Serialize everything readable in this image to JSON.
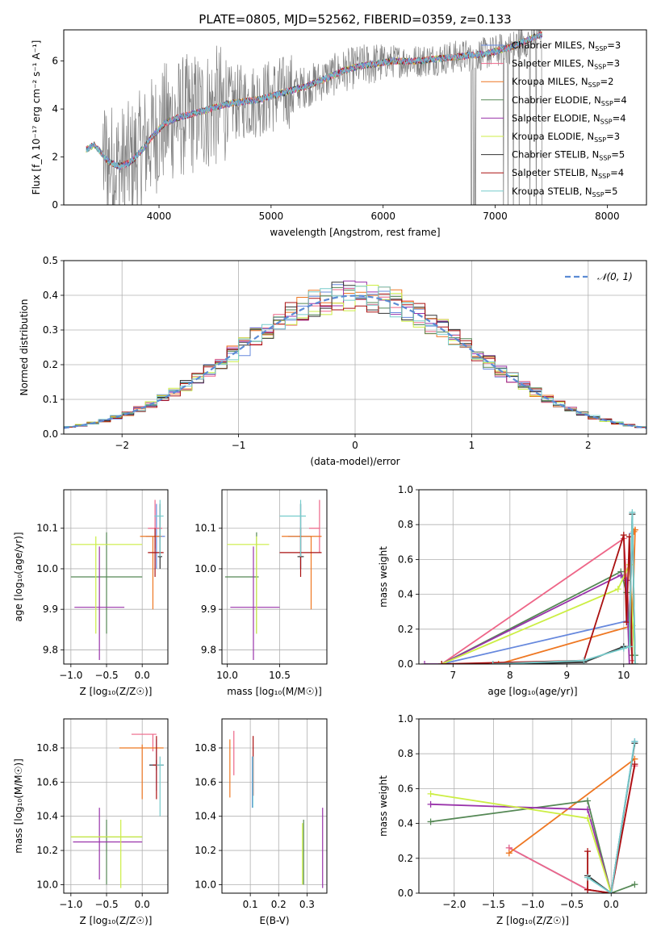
{
  "figure": {
    "title": "PLATE=0805, MJD=52562, FIBERID=0359, z=0.133"
  },
  "colors": {
    "chabrier_miles": "#6688dd",
    "salpeter_miles": "#ee6688",
    "kroupa_miles": "#ee7722",
    "chabrier_elodie": "#558855",
    "salpeter_elodie": "#9933aa",
    "kroupa_elodie": "#ccee44",
    "chabrier_stelib": "#333333",
    "salpeter_stelib": "#aa1111",
    "kroupa_stelib": "#77cccc",
    "data": "#808080",
    "normal": "#5b8bd4"
  },
  "chart_data": [
    {
      "type": "line",
      "id": "spectrum",
      "xlabel": "wavelength [Angstrom, rest frame]",
      "ylabel": "Flux [f_λ 10⁻¹⁷ erg cm⁻² s⁻¹ A⁻¹]",
      "xlim": [
        3150,
        8350
      ],
      "ylim": [
        0,
        7.3
      ],
      "xticks": [
        4000,
        5000,
        6000,
        7000,
        8000
      ],
      "yticks": [
        0,
        2,
        4,
        6
      ],
      "grid": false,
      "legend_position": "top-right",
      "legend": [
        {
          "label": "Chabrier MILES, N",
          "sub": "SSP",
          "suffix": "=3",
          "color": "#6688dd"
        },
        {
          "label": "Salpeter MILES, N",
          "sub": "SSP",
          "suffix": "=3",
          "color": "#ee6688"
        },
        {
          "label": "Kroupa MILES, N",
          "sub": "SSP",
          "suffix": "=2",
          "color": "#ee7722"
        },
        {
          "label": "Chabrier ELODIE, N",
          "sub": "SSP",
          "suffix": "=4",
          "color": "#558855"
        },
        {
          "label": "Salpeter ELODIE, N",
          "sub": "SSP",
          "suffix": "=4",
          "color": "#9933aa"
        },
        {
          "label": "Kroupa ELODIE, N",
          "sub": "SSP",
          "suffix": "=3",
          "color": "#ccee44"
        },
        {
          "label": "Chabrier STELIB, N",
          "sub": "SSP",
          "suffix": "=5",
          "color": "#333333"
        },
        {
          "label": "Salpeter STELIB, N",
          "sub": "SSP",
          "suffix": "=4",
          "color": "#aa1111"
        },
        {
          "label": "Kroupa STELIB, N",
          "sub": "SSP",
          "suffix": "=5",
          "color": "#77cccc"
        }
      ],
      "continuum": {
        "x": [
          3350,
          3420,
          3480,
          3550,
          3650,
          3750,
          3850,
          3950,
          4050,
          4150,
          4300,
          4450,
          4600,
          4750,
          4900,
          5050,
          5200,
          5350,
          5500,
          5650,
          5800,
          5950,
          6100,
          6300,
          6500,
          6700,
          6900,
          7000,
          7150,
          7300,
          7400
        ],
        "y": [
          2.3,
          2.5,
          2.2,
          1.8,
          1.6,
          1.8,
          2.3,
          2.9,
          3.4,
          3.6,
          3.8,
          4.0,
          4.2,
          4.3,
          4.4,
          4.6,
          4.8,
          5.0,
          5.3,
          5.6,
          5.8,
          5.9,
          6.0,
          6.0,
          6.1,
          6.2,
          6.3,
          6.4,
          6.6,
          6.9,
          7.1
        ]
      }
    },
    {
      "type": "bar",
      "id": "residuals",
      "xlabel": "(data-model)/error",
      "ylabel": "Normed distribution",
      "xlim": [
        -2.5,
        2.5
      ],
      "ylim": [
        0,
        0.5
      ],
      "xticks": [
        -2,
        -1,
        0,
        1,
        2
      ],
      "yticks": [
        0.0,
        0.1,
        0.2,
        0.3,
        0.4,
        0.5
      ],
      "grid": true,
      "bin_width": 0.1,
      "legend_position": "top-right",
      "normal_label": "𝒩(0, 1)"
    },
    {
      "type": "scatter",
      "id": "age_vs_Z",
      "xlabel": "Z [log₁₀(Z/Z☉)]",
      "ylabel": "age  [log₁₀(age/yr)]",
      "xlim": [
        -1.1,
        0.36
      ],
      "ylim": [
        9.765,
        10.195
      ],
      "xticks": [
        -1.0,
        -0.5,
        0.0
      ],
      "yticks": [
        9.8,
        9.9,
        10.0,
        10.1
      ],
      "grid": true,
      "points": [
        {
          "color": "#6688dd",
          "x": 0.2,
          "xerr": [
            0.15,
            0.12
          ],
          "y": 10.08,
          "yerr": [
            0.08,
            0.08
          ]
        },
        {
          "color": "#ee6688",
          "x": 0.18,
          "xerr": [
            0.1,
            0.1
          ],
          "y": 10.1,
          "yerr": [
            0.05,
            0.07
          ]
        },
        {
          "color": "#ee7722",
          "x": 0.15,
          "xerr": [
            0.18,
            0.12
          ],
          "y": 10.08,
          "yerr": [
            0.18,
            0.0
          ]
        },
        {
          "color": "#558855",
          "x": -0.5,
          "xerr": [
            0.5,
            0.5
          ],
          "y": 9.98,
          "yerr": [
            0.14,
            0.11
          ]
        },
        {
          "color": "#9933aa",
          "x": -0.6,
          "xerr": [
            0.35,
            0.35
          ],
          "y": 9.905,
          "yerr": [
            0.13,
            0.15
          ]
        },
        {
          "color": "#ccee44",
          "x": -0.65,
          "xerr": [
            0.35,
            0.65
          ],
          "y": 10.06,
          "yerr": [
            0.22,
            0.02
          ]
        },
        {
          "color": "#333333",
          "x": 0.25,
          "xerr": [
            0.03,
            0.03
          ],
          "y": 10.03,
          "yerr": [
            0.03,
            0.13
          ]
        },
        {
          "color": "#aa1111",
          "x": 0.18,
          "xerr": [
            0.1,
            0.12
          ],
          "y": 10.04,
          "yerr": [
            0.06,
            0.06
          ]
        },
        {
          "color": "#77cccc",
          "x": 0.25,
          "xerr": [
            0.08,
            0.05
          ],
          "y": 10.13,
          "yerr": [
            0.1,
            0.04
          ]
        }
      ]
    },
    {
      "type": "scatter",
      "id": "age_vs_mass",
      "xlabel": "mass [log₁₀(M/M☉)]",
      "ylabel": "",
      "xlim": [
        9.95,
        10.95
      ],
      "ylim": [
        9.765,
        10.195
      ],
      "xticks": [
        10.0,
        10.5
      ],
      "yticks": [
        9.8,
        9.9,
        10.0,
        10.1
      ],
      "grid": true,
      "points": [
        {
          "color": "#6688dd",
          "x": 10.7,
          "xerr": [
            0.12,
            0.1
          ],
          "y": 10.08,
          "yerr": [
            0.08,
            0.08
          ]
        },
        {
          "color": "#ee6688",
          "x": 10.88,
          "xerr": [
            0.1,
            0.0
          ],
          "y": 10.1,
          "yerr": [
            0.06,
            0.07
          ]
        },
        {
          "color": "#ee7722",
          "x": 10.8,
          "xerr": [
            0.28,
            0.1
          ],
          "y": 10.08,
          "yerr": [
            0.18,
            0.0
          ]
        },
        {
          "color": "#558855",
          "x": 10.28,
          "xerr": [
            0.3,
            0.02
          ],
          "y": 9.98,
          "yerr": [
            0.14,
            0.11
          ]
        },
        {
          "color": "#9933aa",
          "x": 10.25,
          "xerr": [
            0.22,
            0.25
          ],
          "y": 9.905,
          "yerr": [
            0.13,
            0.15
          ]
        },
        {
          "color": "#ccee44",
          "x": 10.28,
          "xerr": [
            0.28,
            0.12
          ],
          "y": 10.06,
          "yerr": [
            0.22,
            0.02
          ]
        },
        {
          "color": "#333333",
          "x": 10.7,
          "xerr": [
            0.03,
            0.03
          ],
          "y": 10.03,
          "yerr": [
            0.03,
            0.13
          ]
        },
        {
          "color": "#aa1111",
          "x": 10.7,
          "xerr": [
            0.2,
            0.2
          ],
          "y": 10.04,
          "yerr": [
            0.06,
            0.06
          ]
        },
        {
          "color": "#77cccc",
          "x": 10.7,
          "xerr": [
            0.2,
            0.05
          ],
          "y": 10.13,
          "yerr": [
            0.1,
            0.04
          ]
        }
      ]
    },
    {
      "type": "line",
      "id": "weight_vs_age",
      "xlabel": "age  [log₁₀(age/yr)]",
      "ylabel": "mass weight",
      "xlim": [
        6.4,
        10.4
      ],
      "ylim": [
        0,
        1.0
      ],
      "xticks": [
        7,
        8,
        9,
        10
      ],
      "yticks": [
        0.0,
        0.2,
        0.4,
        0.6,
        0.8,
        1.0
      ],
      "grid": true,
      "series": [
        {
          "color": "#6688dd",
          "x": [
            6.8,
            10.1,
            10.15
          ],
          "y": [
            0.0,
            0.25,
            0.75
          ]
        },
        {
          "color": "#ee6688",
          "x": [
            6.8,
            10.0,
            10.1,
            10.15
          ],
          "y": [
            0.0,
            0.72,
            0.26,
            0.02
          ]
        },
        {
          "color": "#ee7722",
          "x": [
            7.8,
            10.15,
            10.2,
            10.18
          ],
          "y": [
            0.0,
            0.22,
            0.77,
            0.76
          ]
        },
        {
          "color": "#558855",
          "x": [
            6.8,
            9.95,
            10.05,
            10.15,
            10.2
          ],
          "y": [
            0.0,
            0.53,
            0.41,
            0.05,
            0.05
          ]
        },
        {
          "color": "#9933aa",
          "x": [
            6.5,
            6.8,
            9.95,
            10.05,
            10.1
          ],
          "y": [
            0.0,
            0.0,
            0.51,
            0.48,
            0.0
          ]
        },
        {
          "color": "#ccee44",
          "x": [
            6.8,
            9.9,
            10.1,
            10.2
          ],
          "y": [
            0.0,
            0.43,
            0.57,
            0.0
          ]
        },
        {
          "color": "#333333",
          "x": [
            7.7,
            9.3,
            10.0,
            10.1,
            10.15,
            10.2
          ],
          "y": [
            0.0,
            0.01,
            0.1,
            0.1,
            0.86,
            0.0
          ]
        },
        {
          "color": "#aa1111",
          "x": [
            6.8,
            9.3,
            10.0,
            10.05,
            10.1,
            10.15
          ],
          "y": [
            0.0,
            0.02,
            0.74,
            0.24,
            0.73,
            0.0
          ]
        },
        {
          "color": "#77cccc",
          "x": [
            7.7,
            9.3,
            10.0,
            10.1,
            10.15,
            10.2
          ],
          "y": [
            0.0,
            0.02,
            0.09,
            0.1,
            0.87,
            0.0
          ]
        }
      ]
    },
    {
      "type": "scatter",
      "id": "mass_vs_Z",
      "xlabel": "Z [log₁₀(Z/Z☉)]",
      "ylabel": "mass [log₁₀(M/M☉)]",
      "xlim": [
        -1.1,
        0.36
      ],
      "ylim": [
        9.95,
        10.97
      ],
      "xticks": [
        -1.0,
        -0.5,
        0.0
      ],
      "yticks": [
        10.0,
        10.2,
        10.4,
        10.6,
        10.8
      ],
      "grid": true,
      "points": [
        {
          "color": "#6688dd",
          "x": 0.2,
          "xerr": [
            0.1,
            0.1
          ],
          "y": 10.7,
          "yerr": [
            0.15,
            0.15
          ]
        },
        {
          "color": "#ee6688",
          "x": 0.15,
          "xerr": [
            0.3,
            0.05
          ],
          "y": 10.88,
          "yerr": [
            0.1,
            0.0
          ]
        },
        {
          "color": "#ee7722",
          "x": 0.0,
          "xerr": [
            0.32,
            0.3
          ],
          "y": 10.8,
          "yerr": [
            0.3,
            0.02
          ]
        },
        {
          "color": "#558855",
          "x": -0.5,
          "xerr": [
            0.5,
            0.5
          ],
          "y": 10.28,
          "yerr": [
            0.28,
            0.1
          ]
        },
        {
          "color": "#9933aa",
          "x": -0.6,
          "xerr": [
            0.37,
            0.6
          ],
          "y": 10.25,
          "yerr": [
            0.22,
            0.2
          ]
        },
        {
          "color": "#ccee44",
          "x": -0.3,
          "xerr": [
            0.7,
            0.3
          ],
          "y": 10.28,
          "yerr": [
            0.3,
            0.1
          ]
        },
        {
          "color": "#333333",
          "x": 0.2,
          "xerr": [
            0.1,
            0.1
          ],
          "y": 10.7,
          "yerr": [
            0.03,
            0.03
          ]
        },
        {
          "color": "#aa1111",
          "x": 0.2,
          "xerr": [
            0.05,
            0.05
          ],
          "y": 10.7,
          "yerr": [
            0.2,
            0.17
          ]
        },
        {
          "color": "#77cccc",
          "x": 0.25,
          "xerr": [
            0.05,
            0.05
          ],
          "y": 10.7,
          "yerr": [
            0.3,
            0.05
          ]
        }
      ]
    },
    {
      "type": "scatter",
      "id": "mass_vs_ebv",
      "xlabel": "E(B-V)",
      "ylabel": "",
      "xlim": [
        0.0,
        0.37
      ],
      "ylim": [
        9.95,
        10.97
      ],
      "xticks": [
        0.1,
        0.2,
        0.3
      ],
      "yticks": [
        10.0,
        10.2,
        10.4,
        10.6,
        10.8
      ],
      "grid": true,
      "points": [
        {
          "color": "#ee7722",
          "x": 0.028,
          "xerr": [
            0,
            0
          ],
          "y": 10.68,
          "yerr": [
            0.17,
            0.17
          ]
        },
        {
          "color": "#ee6688",
          "x": 0.042,
          "xerr": [
            0,
            0
          ],
          "y": 10.79,
          "yerr": [
            0.15,
            0.11
          ]
        },
        {
          "color": "#aa1111",
          "x": 0.11,
          "xerr": [
            0,
            0
          ],
          "y": 10.71,
          "yerr": [
            0.19,
            0.16
          ]
        },
        {
          "color": "#6688dd",
          "x": 0.107,
          "xerr": [
            0,
            0
          ],
          "y": 10.7,
          "yerr": [
            0.25,
            0.05
          ]
        },
        {
          "color": "#77cccc",
          "x": 0.109,
          "xerr": [
            0,
            0
          ],
          "y": 10.65,
          "yerr": [
            0.2,
            0.1
          ]
        },
        {
          "color": "#558855",
          "x": 0.288,
          "xerr": [
            0,
            0
          ],
          "y": 10.2,
          "yerr": [
            0.2,
            0.18
          ]
        },
        {
          "color": "#ccee44",
          "x": 0.284,
          "xerr": [
            0,
            0
          ],
          "y": 10.18,
          "yerr": [
            0.18,
            0.18
          ]
        },
        {
          "color": "#9933aa",
          "x": 0.355,
          "xerr": [
            0,
            0
          ],
          "y": 10.2,
          "yerr": [
            0.22,
            0.25
          ]
        }
      ]
    },
    {
      "type": "line",
      "id": "weight_vs_Z",
      "xlabel": "Z [log₁₀(Z/Z☉)]",
      "ylabel": "mass weight",
      "xlim": [
        -2.45,
        0.45
      ],
      "ylim": [
        0,
        1.0
      ],
      "xticks": [
        -2.0,
        -1.5,
        -1.0,
        -0.5,
        0.0
      ],
      "yticks": [
        0.0,
        0.2,
        0.4,
        0.6,
        0.8,
        1.0
      ],
      "grid": true,
      "series": [
        {
          "color": "#6688dd",
          "x": [
            -1.3,
            -0.3,
            0.0,
            0.3
          ],
          "y": [
            0.26,
            0.02,
            0.0,
            0.87
          ]
        },
        {
          "color": "#ee6688",
          "x": [
            -1.3,
            -0.3,
            0.0,
            0.3
          ],
          "y": [
            0.26,
            0.02,
            0.0,
            0.73
          ]
        },
        {
          "color": "#ee7722",
          "x": [
            -1.3,
            0.3
          ],
          "y": [
            0.23,
            0.77
          ]
        },
        {
          "color": "#558855",
          "x": [
            -2.3,
            -0.3,
            0.0,
            0.3
          ],
          "y": [
            0.41,
            0.53,
            0.0,
            0.05
          ]
        },
        {
          "color": "#9933aa",
          "x": [
            -2.3,
            -0.3,
            0.0
          ],
          "y": [
            0.51,
            0.48,
            0.0
          ]
        },
        {
          "color": "#ccee44",
          "x": [
            -2.3,
            -0.3,
            0.0
          ],
          "y": [
            0.57,
            0.43,
            0.0
          ]
        },
        {
          "color": "#333333",
          "x": [
            -0.3,
            0.0,
            0.3
          ],
          "y": [
            0.1,
            0.0,
            0.86
          ]
        },
        {
          "color": "#aa1111",
          "x": [
            -0.3,
            -0.3,
            0.0,
            0.3
          ],
          "y": [
            0.24,
            0.02,
            0.0,
            0.74
          ]
        },
        {
          "color": "#77cccc",
          "x": [
            -0.3,
            0.0,
            0.3
          ],
          "y": [
            0.09,
            0.0,
            0.87
          ]
        }
      ]
    }
  ]
}
